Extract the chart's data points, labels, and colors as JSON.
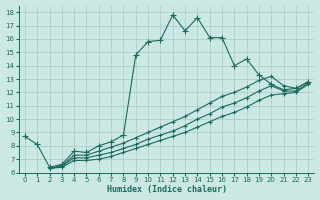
{
  "xlabel": "Humidex (Indice chaleur)",
  "xlim": [
    -0.5,
    23.5
  ],
  "ylim": [
    6,
    18.5
  ],
  "xticks": [
    0,
    1,
    2,
    3,
    4,
    5,
    6,
    7,
    8,
    9,
    10,
    11,
    12,
    13,
    14,
    15,
    16,
    17,
    18,
    19,
    20,
    21,
    22,
    23
  ],
  "yticks": [
    6,
    7,
    8,
    9,
    10,
    11,
    12,
    13,
    14,
    15,
    16,
    17,
    18
  ],
  "bg_color": "#cce8e5",
  "grid_color": "#aacfcc",
  "line_color": "#1a6b5a",
  "line1_x": [
    0,
    1,
    2,
    3,
    4,
    5,
    6,
    7,
    8,
    9,
    10,
    11,
    12,
    13,
    14,
    15,
    16,
    17,
    18,
    19,
    20,
    21,
    22,
    23
  ],
  "line1_y": [
    8.7,
    8.1,
    6.4,
    6.6,
    7.6,
    7.5,
    8.0,
    8.3,
    8.8,
    14.8,
    15.8,
    15.9,
    17.8,
    16.6,
    17.6,
    16.1,
    16.1,
    14.0,
    14.5,
    13.3,
    12.6,
    12.2,
    12.3,
    12.8
  ],
  "line2_x": [
    2,
    3,
    4,
    5,
    6,
    7,
    8,
    9,
    10,
    11,
    12,
    13,
    14,
    15,
    16,
    17,
    18,
    19,
    20,
    21,
    22,
    23
  ],
  "line2_y": [
    6.3,
    6.5,
    7.3,
    7.3,
    7.6,
    7.9,
    8.2,
    8.6,
    9.0,
    9.4,
    9.8,
    10.2,
    10.7,
    11.2,
    11.7,
    12.0,
    12.4,
    12.9,
    13.2,
    12.5,
    12.3,
    12.8
  ],
  "line3_x": [
    2,
    3,
    4,
    5,
    6,
    7,
    8,
    9,
    10,
    11,
    12,
    13,
    14,
    15,
    16,
    17,
    18,
    19,
    20,
    21,
    22,
    23
  ],
  "line3_y": [
    6.3,
    6.5,
    7.1,
    7.1,
    7.3,
    7.5,
    7.8,
    8.1,
    8.5,
    8.8,
    9.1,
    9.5,
    10.0,
    10.4,
    10.9,
    11.2,
    11.6,
    12.1,
    12.5,
    12.1,
    12.1,
    12.7
  ],
  "line4_x": [
    2,
    3,
    4,
    5,
    6,
    7,
    8,
    9,
    10,
    11,
    12,
    13,
    14,
    15,
    16,
    17,
    18,
    19,
    20,
    21,
    22,
    23
  ],
  "line4_y": [
    6.3,
    6.4,
    6.9,
    6.9,
    7.0,
    7.2,
    7.5,
    7.8,
    8.1,
    8.4,
    8.7,
    9.0,
    9.4,
    9.8,
    10.2,
    10.5,
    10.9,
    11.4,
    11.8,
    11.9,
    12.0,
    12.6
  ]
}
